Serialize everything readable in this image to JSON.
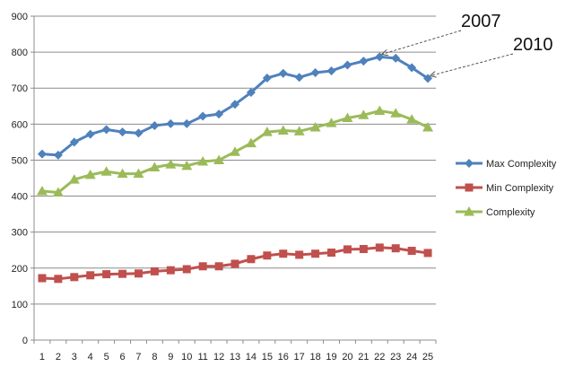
{
  "chart_data": {
    "type": "line",
    "title": "",
    "xlabel": "",
    "ylabel": "",
    "x": [
      1,
      2,
      3,
      4,
      5,
      6,
      7,
      8,
      9,
      10,
      11,
      12,
      13,
      14,
      15,
      16,
      17,
      18,
      19,
      20,
      21,
      22,
      23,
      24,
      25
    ],
    "ylim": [
      0,
      900
    ],
    "yticks": [
      0,
      100,
      200,
      300,
      400,
      500,
      600,
      700,
      800,
      900
    ],
    "grid": true,
    "legend_position": "right",
    "series": [
      {
        "name": "Max Complexity",
        "color": "#4F81BD",
        "marker": "diamond",
        "values": [
          517,
          514,
          550,
          572,
          585,
          578,
          575,
          596,
          601,
          601,
          622,
          628,
          655,
          688,
          728,
          741,
          730,
          743,
          748,
          764,
          775,
          787,
          783,
          757,
          727
        ]
      },
      {
        "name": "Min Complexity",
        "color": "#C0504D",
        "marker": "square",
        "values": [
          172,
          170,
          175,
          180,
          183,
          184,
          185,
          191,
          194,
          197,
          205,
          205,
          212,
          225,
          235,
          240,
          237,
          240,
          243,
          252,
          253,
          257,
          255,
          248,
          242
        ]
      },
      {
        "name": "Complexity",
        "color": "#9BBB59",
        "marker": "triangle",
        "values": [
          414,
          410,
          446,
          459,
          468,
          462,
          462,
          480,
          488,
          484,
          496,
          500,
          523,
          547,
          578,
          582,
          580,
          591,
          603,
          617,
          625,
          637,
          630,
          613,
          591
        ]
      }
    ],
    "annotations": [
      {
        "text": "2007",
        "x": 22,
        "series": 0
      },
      {
        "text": "2010",
        "x": 25,
        "series": 0
      }
    ]
  }
}
